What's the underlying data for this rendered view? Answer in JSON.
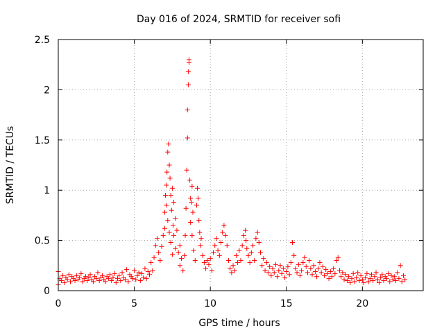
{
  "chart_data": {
    "type": "scatter",
    "title": "Day 016 of 2024, SRMTID for receiver sofi",
    "xlabel": "GPS time / hours",
    "ylabel": "SRMTID / TECUs",
    "xlim": [
      0,
      24
    ],
    "ylim": [
      0,
      2.5
    ],
    "xticks": [
      0,
      5,
      10,
      15,
      20
    ],
    "xtick_labels": [
      "0",
      "5",
      "10",
      "15",
      "20"
    ],
    "yticks": [
      0,
      0.5,
      1,
      1.5,
      2,
      2.5
    ],
    "ytick_labels": [
      "0",
      "0.5",
      "1",
      "1.5",
      "2",
      "2.5"
    ],
    "grid": true,
    "marker": "+",
    "series": [
      {
        "name": "SRMTID",
        "color": "#ff0000",
        "points": [
          [
            0.0,
            0.19
          ],
          [
            0.0,
            0.06
          ],
          [
            0.1,
            0.12
          ],
          [
            0.2,
            0.1
          ],
          [
            0.3,
            0.15
          ],
          [
            0.4,
            0.08
          ],
          [
            0.5,
            0.13
          ],
          [
            0.6,
            0.11
          ],
          [
            0.7,
            0.16
          ],
          [
            0.8,
            0.09
          ],
          [
            0.9,
            0.14
          ],
          [
            1.0,
            0.12
          ],
          [
            1.1,
            0.1
          ],
          [
            1.2,
            0.15
          ],
          [
            1.3,
            0.11
          ],
          [
            1.4,
            0.13
          ],
          [
            1.5,
            0.17
          ],
          [
            1.6,
            0.09
          ],
          [
            1.7,
            0.12
          ],
          [
            1.8,
            0.14
          ],
          [
            1.9,
            0.1
          ],
          [
            2.0,
            0.13
          ],
          [
            2.1,
            0.16
          ],
          [
            2.2,
            0.11
          ],
          [
            2.3,
            0.09
          ],
          [
            2.4,
            0.14
          ],
          [
            2.5,
            0.12
          ],
          [
            2.6,
            0.18
          ],
          [
            2.7,
            0.1
          ],
          [
            2.8,
            0.13
          ],
          [
            2.9,
            0.15
          ],
          [
            3.0,
            0.11
          ],
          [
            3.1,
            0.09
          ],
          [
            3.2,
            0.14
          ],
          [
            3.3,
            0.12
          ],
          [
            3.4,
            0.16
          ],
          [
            3.5,
            0.1
          ],
          [
            3.6,
            0.13
          ],
          [
            3.7,
            0.17
          ],
          [
            3.8,
            0.08
          ],
          [
            3.9,
            0.12
          ],
          [
            4.0,
            0.15
          ],
          [
            4.1,
            0.1
          ],
          [
            4.2,
            0.18
          ],
          [
            4.3,
            0.13
          ],
          [
            4.4,
            0.11
          ],
          [
            4.5,
            0.21
          ],
          [
            4.6,
            0.09
          ],
          [
            4.7,
            0.16
          ],
          [
            4.8,
            0.14
          ],
          [
            4.9,
            0.12
          ],
          [
            5.0,
            0.2
          ],
          [
            5.1,
            0.11
          ],
          [
            5.2,
            0.15
          ],
          [
            5.3,
            0.18
          ],
          [
            5.4,
            0.1
          ],
          [
            5.5,
            0.17
          ],
          [
            5.6,
            0.13
          ],
          [
            5.7,
            0.22
          ],
          [
            5.8,
            0.12
          ],
          [
            5.9,
            0.19
          ],
          [
            6.0,
            0.16
          ],
          [
            6.1,
            0.28
          ],
          [
            6.2,
            0.2
          ],
          [
            6.3,
            0.33
          ],
          [
            6.4,
            0.45
          ],
          [
            6.5,
            0.52
          ],
          [
            6.6,
            0.38
          ],
          [
            6.7,
            0.3
          ],
          [
            6.8,
            0.44
          ],
          [
            6.9,
            0.55
          ],
          [
            7.0,
            0.62
          ],
          [
            7.0,
            0.78
          ],
          [
            7.05,
            0.95
          ],
          [
            7.1,
            1.05
          ],
          [
            7.1,
            0.85
          ],
          [
            7.15,
            1.18
          ],
          [
            7.2,
            1.38
          ],
          [
            7.2,
            0.7
          ],
          [
            7.25,
            1.46
          ],
          [
            7.3,
            1.25
          ],
          [
            7.3,
            0.58
          ],
          [
            7.35,
            1.12
          ],
          [
            7.4,
            0.95
          ],
          [
            7.4,
            0.48
          ],
          [
            7.45,
            0.8
          ],
          [
            7.5,
            1.02
          ],
          [
            7.5,
            0.36
          ],
          [
            7.55,
            0.65
          ],
          [
            7.6,
            0.88
          ],
          [
            7.6,
            0.55
          ],
          [
            7.7,
            0.72
          ],
          [
            7.7,
            0.42
          ],
          [
            7.8,
            0.6
          ],
          [
            7.9,
            0.38
          ],
          [
            8.0,
            0.45
          ],
          [
            8.0,
            0.25
          ],
          [
            8.1,
            0.32
          ],
          [
            8.2,
            0.2
          ],
          [
            8.3,
            0.35
          ],
          [
            8.35,
            0.55
          ],
          [
            8.4,
            0.82
          ],
          [
            8.45,
            1.2
          ],
          [
            8.5,
            1.52
          ],
          [
            8.5,
            1.8
          ],
          [
            8.55,
            2.05
          ],
          [
            8.55,
            2.18
          ],
          [
            8.6,
            2.3
          ],
          [
            8.6,
            2.27
          ],
          [
            8.65,
            1.1
          ],
          [
            8.7,
            0.92
          ],
          [
            8.7,
            0.68
          ],
          [
            8.75,
            0.88
          ],
          [
            8.8,
            1.04
          ],
          [
            8.8,
            0.55
          ],
          [
            8.85,
            0.78
          ],
          [
            8.9,
            0.4
          ],
          [
            9.0,
            0.3
          ],
          [
            9.1,
            0.85
          ],
          [
            9.15,
            1.02
          ],
          [
            9.2,
            0.92
          ],
          [
            9.25,
            0.7
          ],
          [
            9.3,
            0.58
          ],
          [
            9.35,
            0.45
          ],
          [
            9.4,
            0.52
          ],
          [
            9.5,
            0.35
          ],
          [
            9.6,
            0.28
          ],
          [
            9.7,
            0.22
          ],
          [
            9.8,
            0.3
          ],
          [
            9.9,
            0.26
          ],
          [
            10.0,
            0.32
          ],
          [
            10.1,
            0.2
          ],
          [
            10.2,
            0.38
          ],
          [
            10.3,
            0.45
          ],
          [
            10.4,
            0.52
          ],
          [
            10.5,
            0.4
          ],
          [
            10.6,
            0.35
          ],
          [
            10.7,
            0.48
          ],
          [
            10.8,
            0.58
          ],
          [
            10.9,
            0.65
          ],
          [
            11.0,
            0.55
          ],
          [
            11.1,
            0.45
          ],
          [
            11.2,
            0.3
          ],
          [
            11.3,
            0.22
          ],
          [
            11.4,
            0.18
          ],
          [
            11.5,
            0.25
          ],
          [
            11.6,
            0.2
          ],
          [
            11.7,
            0.35
          ],
          [
            11.8,
            0.28
          ],
          [
            11.9,
            0.4
          ],
          [
            12.0,
            0.3
          ],
          [
            12.1,
            0.45
          ],
          [
            12.2,
            0.55
          ],
          [
            12.3,
            0.6
          ],
          [
            12.35,
            0.5
          ],
          [
            12.4,
            0.42
          ],
          [
            12.5,
            0.35
          ],
          [
            12.6,
            0.28
          ],
          [
            12.7,
            0.38
          ],
          [
            12.8,
            0.45
          ],
          [
            12.9,
            0.3
          ],
          [
            13.0,
            0.52
          ],
          [
            13.1,
            0.58
          ],
          [
            13.2,
            0.48
          ],
          [
            13.3,
            0.38
          ],
          [
            13.4,
            0.25
          ],
          [
            13.5,
            0.32
          ],
          [
            13.6,
            0.2
          ],
          [
            13.7,
            0.28
          ],
          [
            13.8,
            0.18
          ],
          [
            13.9,
            0.24
          ],
          [
            14.0,
            0.15
          ],
          [
            14.1,
            0.22
          ],
          [
            14.2,
            0.18
          ],
          [
            14.3,
            0.26
          ],
          [
            14.4,
            0.14
          ],
          [
            14.5,
            0.2
          ],
          [
            14.6,
            0.25
          ],
          [
            14.7,
            0.17
          ],
          [
            14.8,
            0.22
          ],
          [
            14.9,
            0.13
          ],
          [
            15.0,
            0.19
          ],
          [
            15.1,
            0.24
          ],
          [
            15.2,
            0.16
          ],
          [
            15.3,
            0.28
          ],
          [
            15.4,
            0.48
          ],
          [
            15.5,
            0.35
          ],
          [
            15.6,
            0.22
          ],
          [
            15.7,
            0.18
          ],
          [
            15.8,
            0.26
          ],
          [
            15.9,
            0.15
          ],
          [
            16.0,
            0.2
          ],
          [
            16.1,
            0.28
          ],
          [
            16.2,
            0.33
          ],
          [
            16.3,
            0.24
          ],
          [
            16.4,
            0.18
          ],
          [
            16.5,
            0.3
          ],
          [
            16.6,
            0.22
          ],
          [
            16.7,
            0.16
          ],
          [
            16.8,
            0.25
          ],
          [
            16.9,
            0.19
          ],
          [
            17.0,
            0.14
          ],
          [
            17.1,
            0.22
          ],
          [
            17.2,
            0.28
          ],
          [
            17.3,
            0.18
          ],
          [
            17.4,
            0.24
          ],
          [
            17.5,
            0.15
          ],
          [
            17.6,
            0.21
          ],
          [
            17.7,
            0.17
          ],
          [
            17.8,
            0.12
          ],
          [
            17.9,
            0.19
          ],
          [
            18.0,
            0.14
          ],
          [
            18.1,
            0.22
          ],
          [
            18.2,
            0.17
          ],
          [
            18.3,
            0.3
          ],
          [
            18.4,
            0.33
          ],
          [
            18.5,
            0.2
          ],
          [
            18.6,
            0.14
          ],
          [
            18.7,
            0.18
          ],
          [
            18.8,
            0.11
          ],
          [
            18.9,
            0.16
          ],
          [
            19.0,
            0.1
          ],
          [
            19.1,
            0.14
          ],
          [
            19.2,
            0.08
          ],
          [
            19.3,
            0.12
          ],
          [
            19.4,
            0.17
          ],
          [
            19.5,
            0.09
          ],
          [
            19.6,
            0.13
          ],
          [
            19.7,
            0.18
          ],
          [
            19.8,
            0.1
          ],
          [
            19.9,
            0.15
          ],
          [
            20.0,
            0.11
          ],
          [
            20.1,
            0.08
          ],
          [
            20.2,
            0.13
          ],
          [
            20.3,
            0.17
          ],
          [
            20.4,
            0.09
          ],
          [
            20.5,
            0.12
          ],
          [
            20.6,
            0.16
          ],
          [
            20.7,
            0.1
          ],
          [
            20.8,
            0.14
          ],
          [
            20.9,
            0.18
          ],
          [
            21.0,
            0.11
          ],
          [
            21.1,
            0.08
          ],
          [
            21.2,
            0.13
          ],
          [
            21.3,
            0.16
          ],
          [
            21.4,
            0.1
          ],
          [
            21.5,
            0.14
          ],
          [
            21.6,
            0.12
          ],
          [
            21.7,
            0.17
          ],
          [
            21.8,
            0.09
          ],
          [
            21.9,
            0.15
          ],
          [
            22.0,
            0.11
          ],
          [
            22.1,
            0.14
          ],
          [
            22.2,
            0.1
          ],
          [
            22.3,
            0.18
          ],
          [
            22.4,
            0.12
          ],
          [
            22.5,
            0.25
          ],
          [
            22.6,
            0.09
          ],
          [
            22.7,
            0.15
          ],
          [
            22.8,
            0.11
          ]
        ]
      }
    ]
  }
}
